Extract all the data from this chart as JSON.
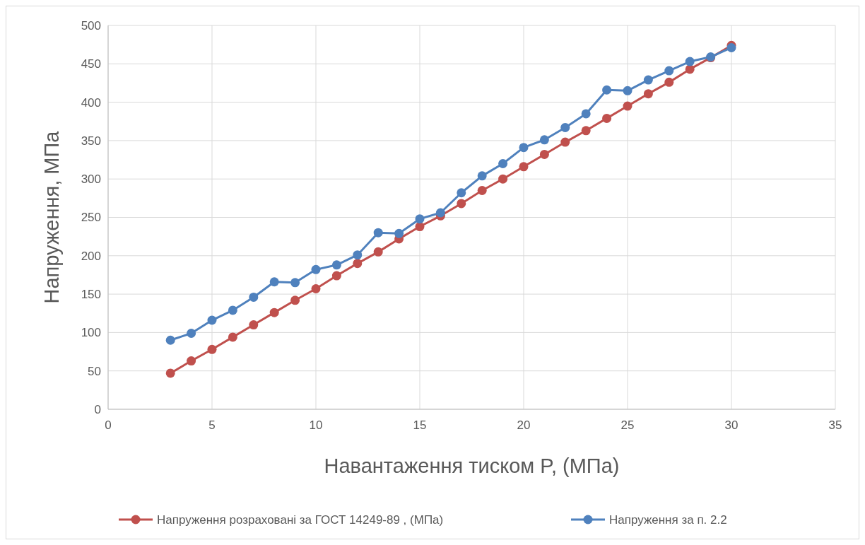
{
  "chart_data": {
    "type": "line",
    "xlabel": "Навантаження тиском P, (МПа)",
    "ylabel": "Напруження, МПа",
    "x": [
      3,
      4,
      5,
      6,
      7,
      8,
      9,
      10,
      11,
      12,
      13,
      14,
      15,
      16,
      17,
      18,
      19,
      20,
      21,
      22,
      23,
      24,
      25,
      26,
      27,
      28,
      29,
      30
    ],
    "series": [
      {
        "name": "Напруження розраховані за ГОСТ 14249-89 , (МПа)",
        "color": "#c0504d",
        "values": [
          47,
          63,
          78,
          94,
          110,
          126,
          142,
          157,
          174,
          190,
          205,
          222,
          238,
          252,
          268,
          285,
          300,
          316,
          332,
          348,
          363,
          379,
          395,
          411,
          426,
          443,
          458,
          474
        ]
      },
      {
        "name": "Напруження за п. 2.2",
        "color": "#4f81bd",
        "values": [
          90,
          99,
          116,
          129,
          146,
          166,
          165,
          182,
          188,
          201,
          230,
          229,
          248,
          256,
          282,
          304,
          320,
          341,
          351,
          367,
          385,
          416,
          415,
          429,
          441,
          453,
          459,
          471
        ]
      }
    ],
    "xlim": [
      0,
      35
    ],
    "xticks": [
      0,
      5,
      10,
      15,
      20,
      25,
      30,
      35
    ],
    "ylim": [
      0,
      500
    ],
    "yticks": [
      0,
      50,
      100,
      150,
      200,
      250,
      300,
      350,
      400,
      450,
      500
    ],
    "grid": true,
    "legend": "bottom",
    "marker": "circle",
    "line_style": "solid"
  }
}
